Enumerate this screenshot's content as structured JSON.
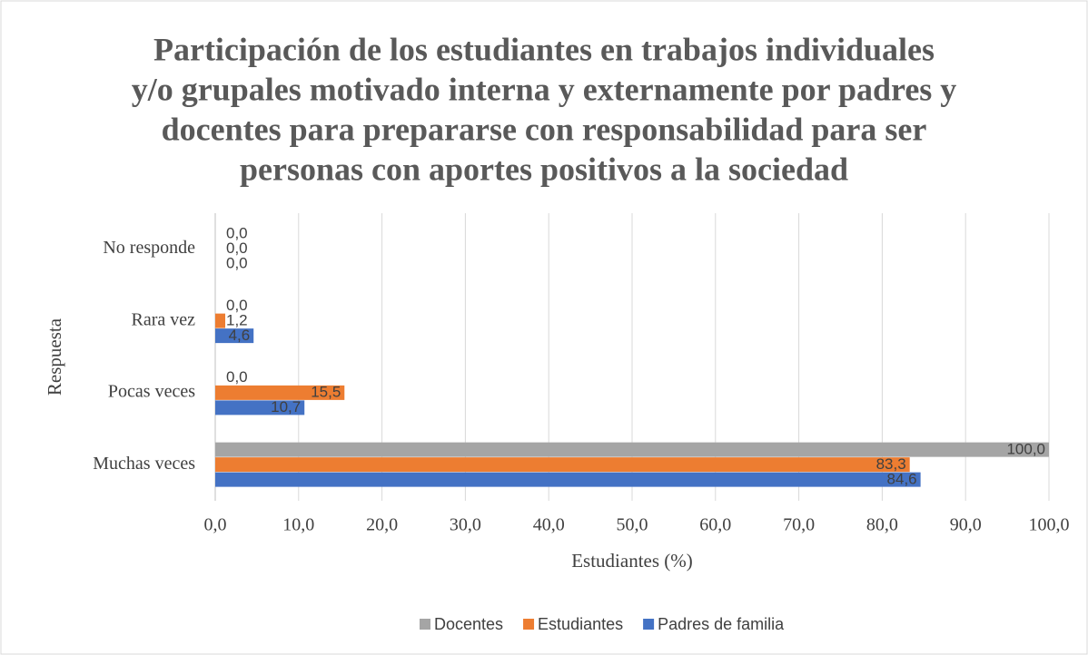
{
  "chart_data": {
    "type": "bar",
    "orientation": "horizontal",
    "title": [
      "Participación de los estudiantes en trabajos individuales",
      "y/o grupales motivado interna y externamente por padres y",
      "docentes para prepararse con responsabilidad para ser",
      "personas con aportes positivos a la sociedad"
    ],
    "x_label": "Estudiantes (%)",
    "y_label": "Respuesta",
    "categories": [
      "Muchas veces",
      "Pocas veces",
      "Rara vez",
      "No responde"
    ],
    "series": [
      {
        "name": "Docentes",
        "color": "#a5a5a5",
        "values": [
          100,
          0,
          0,
          0
        ],
        "value_labels": [
          "100,0",
          "0,0",
          "0,0",
          "0,0"
        ]
      },
      {
        "name": "Estudiantes",
        "color": "#ed7d31",
        "values": [
          83.3,
          15.5,
          1.2,
          0
        ],
        "value_labels": [
          "83,3",
          "15,5",
          "1,2",
          "0,0"
        ]
      },
      {
        "name": "Padres de familia",
        "color": "#4472c4",
        "values": [
          84.6,
          10.7,
          4.6,
          0
        ],
        "value_labels": [
          "84,6",
          "10,7",
          "4,6",
          "0,0"
        ]
      }
    ],
    "xlim": [
      0,
      100
    ],
    "xticks": [
      {
        "value": 0,
        "label": "0,0"
      },
      {
        "value": 10,
        "label": "10,0"
      },
      {
        "value": 20,
        "label": "20,0"
      },
      {
        "value": 30,
        "label": "30,0"
      },
      {
        "value": 40,
        "label": "40,0"
      },
      {
        "value": 50,
        "label": "50,0"
      },
      {
        "value": 60,
        "label": "60,0"
      },
      {
        "value": 70,
        "label": "70,0"
      },
      {
        "value": 80,
        "label": "80,0"
      },
      {
        "value": 90,
        "label": "90,0"
      },
      {
        "value": 100,
        "label": "100,0"
      }
    ],
    "grid": true,
    "legend": "bottom"
  }
}
